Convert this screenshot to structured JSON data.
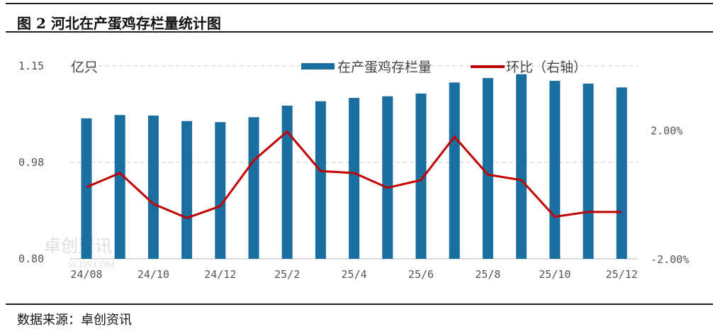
{
  "title": "图 2 河北在产蛋鸡存栏量统计图",
  "footer": "数据来源：卓创资讯",
  "watermark": "卓创资讯 SCI99.COM",
  "chart_data": {
    "type": "bar+line",
    "categories": [
      "24/08",
      "24/09",
      "24/10",
      "24/11",
      "24/12",
      "25/1",
      "25/2",
      "25/3",
      "25/4",
      "25/5",
      "25/6",
      "25/7",
      "25/8",
      "25/9",
      "25/10",
      "25/11",
      "25/12"
    ],
    "x_tick_labels": [
      "24/08",
      "24/10",
      "24/12",
      "25/2",
      "25/4",
      "25/6",
      "25/8",
      "25/10",
      "25/12"
    ],
    "ylabel_left": "亿只",
    "ylim_left": [
      0.8,
      1.15
    ],
    "yticks_left": [
      "0.80",
      "0.98",
      "1.15"
    ],
    "ylim_right": [
      -2,
      4
    ],
    "yticks_right": [
      "-2.00%",
      "2.00%"
    ],
    "grid": true,
    "legend": "top-right",
    "series": [
      {
        "name": "在产蛋鸡存栏量",
        "type": "bar",
        "axis": "left",
        "color": "#1a6ea0",
        "values": [
          1.055,
          1.061,
          1.06,
          1.05,
          1.048,
          1.057,
          1.078,
          1.086,
          1.092,
          1.095,
          1.1,
          1.12,
          1.128,
          1.135,
          1.123,
          1.118,
          1.111
        ]
      },
      {
        "name": "环比（右轴）",
        "type": "line",
        "axis": "right",
        "unit": "%",
        "color": "#c00000",
        "values": [
          0.23,
          0.67,
          -0.29,
          -0.73,
          -0.36,
          1.06,
          1.96,
          0.73,
          0.67,
          0.21,
          0.45,
          1.8,
          0.62,
          0.45,
          -0.69,
          -0.54,
          -0.54
        ]
      }
    ]
  }
}
